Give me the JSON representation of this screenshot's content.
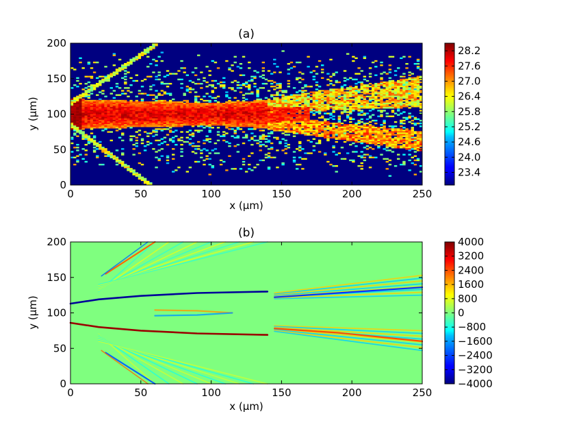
{
  "chart_data": [
    {
      "type": "heatmap",
      "title": "(a)",
      "xlabel": "x (μm)",
      "ylabel": "y (μm)",
      "xlim": [
        0,
        250
      ],
      "ylim": [
        0,
        200
      ],
      "x_ticks": [
        "0",
        "50",
        "100",
        "150",
        "200",
        "250"
      ],
      "y_ticks": [
        "0",
        "50",
        "100",
        "150",
        "200"
      ],
      "colorbar": {
        "colormap": "jet",
        "range": [
          22.9,
          28.5
        ],
        "ticks": [
          "23.4",
          "24.0",
          "24.6",
          "25.2",
          "25.8",
          "26.4",
          "27.0",
          "27.6",
          "28.2"
        ]
      },
      "background_value": 23.0,
      "features": [
        {
          "kind": "core_beam",
          "x": [
            0,
            20,
            50,
            100,
            150
          ],
          "half_width": [
            22,
            20,
            18,
            16,
            20
          ],
          "center_y": 100,
          "value": 28.0
        },
        {
          "kind": "upper_branch",
          "x_start": 150,
          "x_end": 250,
          "y_start": 120,
          "y_end": 140,
          "value": 26.6
        },
        {
          "kind": "lower_branch",
          "x_start": 150,
          "x_end": 250,
          "y_start": 80,
          "y_end": 55,
          "value": 26.8
        },
        {
          "kind": "upper_diagonal",
          "x_start": 0,
          "x_end": 62,
          "y_start": 115,
          "y_end": 200,
          "value": 26.2
        },
        {
          "kind": "lower_diagonal",
          "x_start": 0,
          "x_end": 57,
          "y_start": 85,
          "y_end": 0,
          "value": 26.2
        }
      ]
    },
    {
      "type": "heatmap",
      "title": "(b)",
      "xlabel": "x (μm)",
      "ylabel": "y (μm)",
      "xlim": [
        0,
        250
      ],
      "ylim": [
        0,
        200
      ],
      "x_ticks": [
        "0",
        "50",
        "100",
        "150",
        "200",
        "250"
      ],
      "y_ticks": [
        "0",
        "50",
        "100",
        "150",
        "200"
      ],
      "colorbar": {
        "colormap": "jet",
        "range": [
          -4000,
          4000
        ],
        "ticks": [
          "4000",
          "3200",
          "2400",
          "1600",
          "800",
          "0",
          "−800",
          "−1600",
          "−2400",
          "−3200",
          "−4000"
        ]
      },
      "background_value": 0,
      "features": [
        {
          "kind": "upper_edge_line",
          "x_start": 0,
          "x_end": 140,
          "y_start": 113,
          "y_end": 130,
          "value": -3800
        },
        {
          "kind": "lower_edge_line",
          "x_start": 0,
          "x_end": 140,
          "y_start": 86,
          "y_end": 69,
          "value": 3800
        },
        {
          "kind": "upper_diagonal_fan",
          "x_start": 25,
          "x_end": 60,
          "y_start": 155,
          "y_end": 200,
          "value": 2000
        },
        {
          "kind": "lower_diagonal_fan",
          "x_start": 25,
          "x_end": 60,
          "y_start": 43,
          "y_end": 0,
          "value": -2000
        },
        {
          "kind": "right_branches",
          "x_start": 145,
          "x_end": 250,
          "value": 1600
        }
      ]
    }
  ]
}
